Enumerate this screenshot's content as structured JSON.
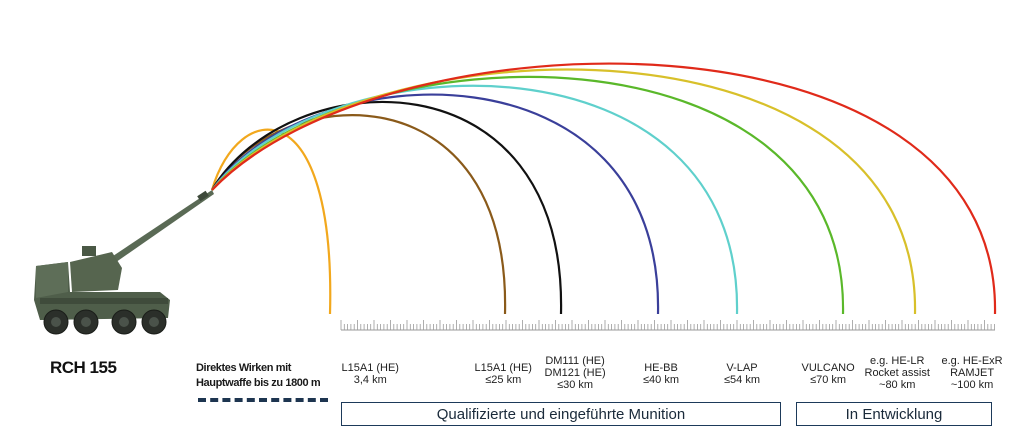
{
  "vehicle": {
    "name": "RCH 155"
  },
  "direct_fire": {
    "line1": "Direktes Wirken mit",
    "line2": "Hauptwaffe bis zu 1800 m"
  },
  "ammunition": [
    {
      "lines": [
        "L15A1 (HE)",
        "3,4 km"
      ],
      "range_km": 3.4,
      "color": "#f2a81d"
    },
    {
      "lines": [
        "L15A1 (HE)",
        "≤25 km"
      ],
      "range_km": 25,
      "color": "#8a5a1a"
    },
    {
      "lines": [
        "DM111 (HE)",
        "DM121 (HE)",
        "≤30 km"
      ],
      "range_km": 30,
      "color": "#111111"
    },
    {
      "lines": [
        "HE-BB",
        "≤40 km"
      ],
      "range_km": 40,
      "color": "#3a3f9a"
    },
    {
      "lines": [
        "V-LAP",
        "≤54 km"
      ],
      "range_km": 54,
      "color": "#5fd0cc"
    },
    {
      "lines": [
        "VULCANO",
        "≤70 km"
      ],
      "range_km": 70,
      "color": "#5ab82a"
    },
    {
      "lines": [
        "e.g. HE-LR",
        "Rocket assist",
        "~80 km"
      ],
      "range_km": 80,
      "color": "#d8c02a"
    },
    {
      "lines": [
        "e.g. HE-ExR",
        "RAMJET",
        "~100 km"
      ],
      "range_km": 100,
      "color": "#e02a1a"
    }
  ],
  "groups": {
    "qualified": "Qualifizierte und eingeführte Munition",
    "in_development": "In Entwicklung"
  },
  "colors": {
    "scale": "#9a9a9a",
    "vehicle": "#4a5a45",
    "group_border": "#1d3a5a",
    "dash": "#1d3550"
  }
}
